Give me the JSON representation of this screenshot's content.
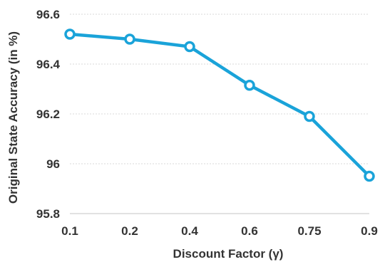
{
  "chart_data": {
    "type": "line",
    "categories": [
      "0.1",
      "0.2",
      "0.4",
      "0.6",
      "0.75",
      "0.9"
    ],
    "series": [
      {
        "values": [
          96.52,
          96.5,
          96.47,
          96.315,
          96.19,
          95.95
        ],
        "color": "#1aa3d9"
      }
    ],
    "xlabel": "Discount Factor (γ)",
    "ylabel": "Original State Accuracy (in %)",
    "ylim": [
      95.8,
      96.6
    ],
    "yticks": [
      95.8,
      96.0,
      96.2,
      96.4,
      96.6
    ],
    "ytick_labels": [
      "95.8",
      "96",
      "96.2",
      "96.4",
      "96.6"
    ],
    "grid": true,
    "marker": "hollow-circle"
  }
}
